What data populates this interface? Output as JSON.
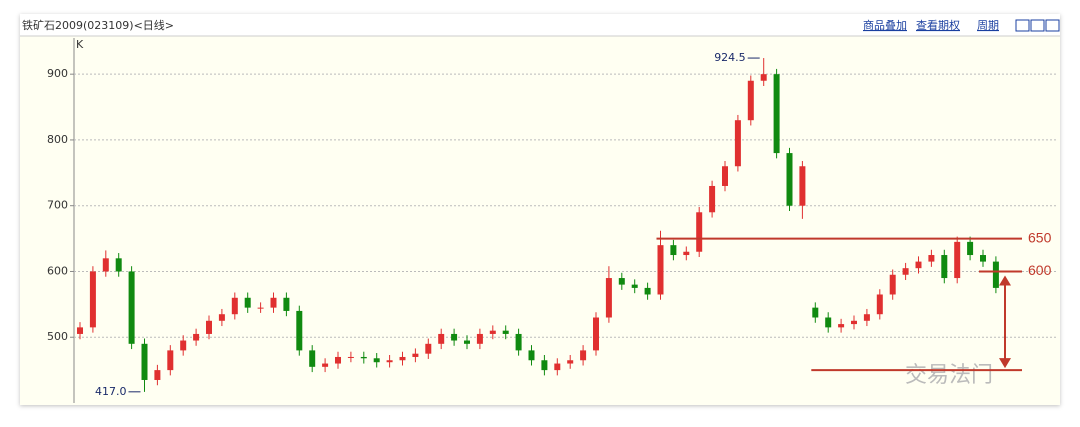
{
  "chart_data": {
    "type": "candlestick",
    "title": "铁矿石2009(023109)<日线>",
    "links": [
      "商品叠加",
      "查看期权",
      "周期"
    ],
    "axis_label": "K",
    "watermark": "交易法门",
    "up_color": "#e03030",
    "down_color": "#108a10",
    "level_color": "#c0392b",
    "ylim": [
      400,
      955
    ],
    "yticks": [
      500,
      600,
      700,
      800,
      900
    ],
    "grid": true,
    "open": [
      505,
      515,
      600,
      620,
      600,
      490,
      435,
      450,
      480,
      495,
      505,
      525,
      535,
      560,
      545,
      545,
      560,
      540,
      480,
      455,
      460,
      470,
      470,
      468,
      462,
      465,
      470,
      475,
      490,
      505,
      495,
      490,
      505,
      510,
      505,
      480,
      465,
      450,
      460,
      465,
      480,
      530,
      590,
      580,
      575,
      565,
      640,
      625,
      630,
      690,
      730,
      760,
      830,
      890,
      900,
      780,
      700,
      545,
      530,
      515,
      520,
      525,
      535,
      565,
      595,
      605,
      615,
      625,
      590,
      645,
      625,
      615
    ],
    "high": [
      523,
      608,
      632,
      628,
      608,
      498,
      458,
      488,
      503,
      513,
      533,
      543,
      568,
      568,
      553,
      568,
      568,
      548,
      488,
      468,
      478,
      478,
      478,
      476,
      473,
      478,
      483,
      498,
      513,
      513,
      503,
      513,
      518,
      518,
      513,
      488,
      473,
      468,
      473,
      488,
      538,
      608,
      598,
      588,
      583,
      662,
      648,
      638,
      698,
      738,
      768,
      838,
      898,
      924.5,
      908,
      788,
      768,
      553,
      538,
      528,
      533,
      543,
      573,
      603,
      613,
      623,
      633,
      633,
      653,
      653,
      633,
      623
    ],
    "low": [
      497,
      507,
      592,
      592,
      482,
      417,
      427,
      442,
      472,
      487,
      497,
      517,
      527,
      537,
      537,
      537,
      532,
      472,
      447,
      447,
      452,
      462,
      460,
      454,
      454,
      457,
      462,
      467,
      482,
      487,
      482,
      482,
      497,
      497,
      472,
      457,
      442,
      442,
      452,
      457,
      472,
      522,
      572,
      567,
      557,
      557,
      617,
      617,
      622,
      682,
      722,
      752,
      822,
      882,
      772,
      692,
      680,
      522,
      507,
      507,
      512,
      517,
      527,
      557,
      587,
      597,
      607,
      582,
      582,
      617,
      607,
      567
    ],
    "close": [
      515,
      600,
      620,
      600,
      490,
      435,
      450,
      480,
      495,
      505,
      525,
      535,
      560,
      545,
      545,
      560,
      540,
      480,
      455,
      460,
      470,
      470,
      468,
      462,
      465,
      470,
      475,
      490,
      505,
      495,
      490,
      505,
      510,
      505,
      480,
      465,
      450,
      460,
      465,
      480,
      530,
      590,
      580,
      575,
      565,
      640,
      625,
      630,
      690,
      730,
      760,
      830,
      890,
      900,
      780,
      700,
      760,
      530,
      515,
      520,
      525,
      535,
      565,
      595,
      605,
      615,
      625,
      590,
      645,
      625,
      615,
      575
    ],
    "annotations": [
      {
        "text": "924.5",
        "value": 924.5,
        "index": 53
      },
      {
        "text": "417.0",
        "value": 417.0,
        "index": 5
      }
    ],
    "levels": [
      {
        "value": 650,
        "label": "650",
        "from": 45
      },
      {
        "value": 600,
        "label": "600",
        "from": 70
      },
      {
        "value": 450,
        "from": 57
      }
    ]
  }
}
